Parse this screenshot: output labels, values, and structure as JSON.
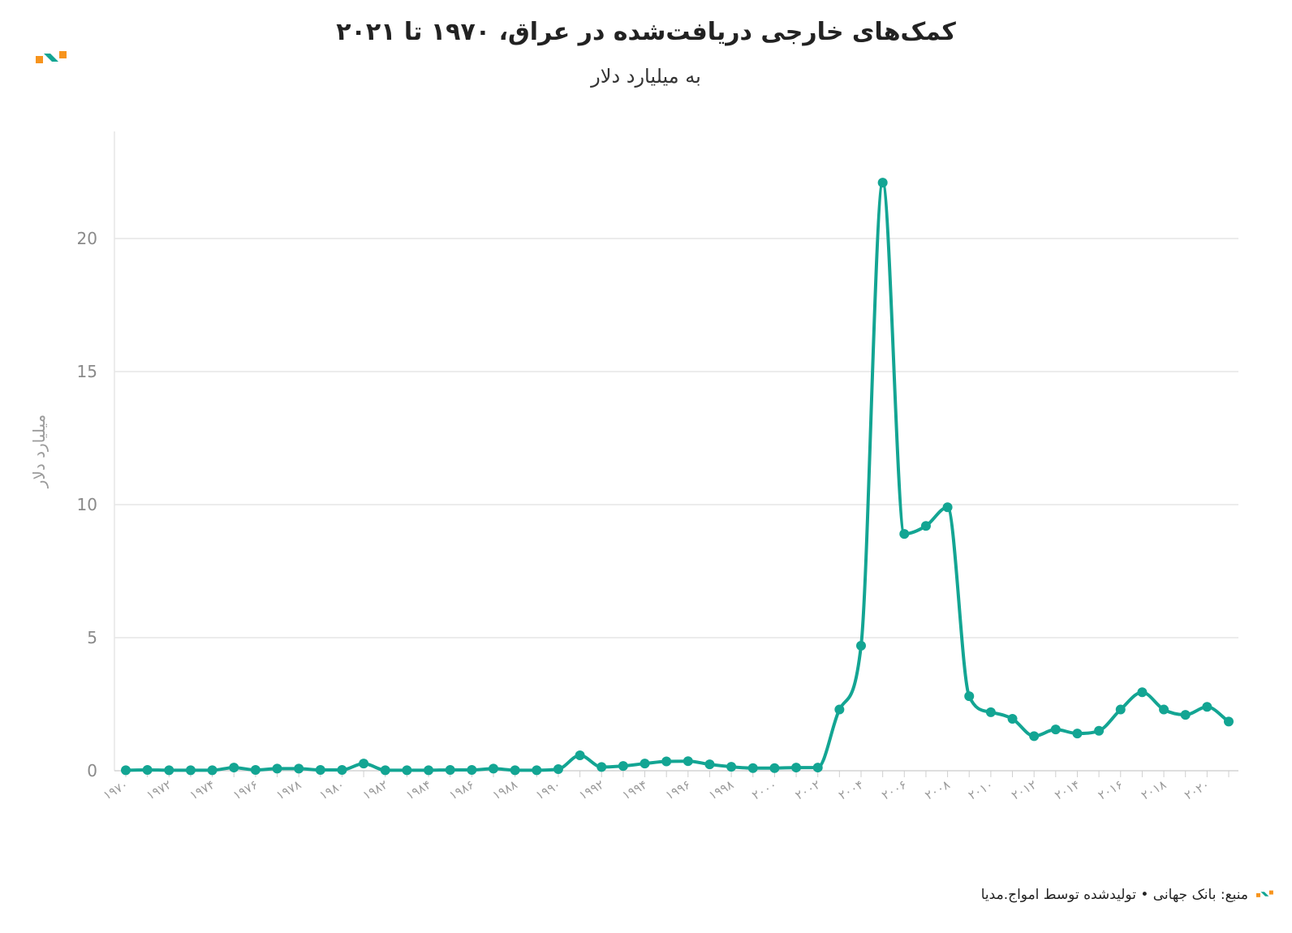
{
  "chart_data": {
    "type": "line",
    "title": "کمک‌های خارجی دریافت‌شده در عراق، ۱۹۷۰ تا ۲۰۲۱",
    "subtitle": "به میلیارد دلار",
    "ylabel": "میلیارد دلار",
    "xlabel": "",
    "ylim": [
      0,
      24
    ],
    "yticks": [
      0,
      5,
      10,
      15,
      20
    ],
    "xticks": [
      "۱۹۷۰",
      "۱۹۷۲",
      "۱۹۷۴",
      "۱۹۷۶",
      "۱۹۷۸",
      "۱۹۸۰",
      "۱۹۸۲",
      "۱۹۸۴",
      "۱۹۸۶",
      "۱۹۸۸",
      "۱۹۹۰",
      "۱۹۹۲",
      "۱۹۹۴",
      "۱۹۹۶",
      "۱۹۹۸",
      "۲۰۰۰",
      "۲۰۰۲",
      "۲۰۰۴",
      "۲۰۰۶",
      "۲۰۰۸",
      "۲۰۱۰",
      "۲۰۱۲",
      "۲۰۱۴",
      "۲۰۱۶",
      "۲۰۱۸",
      "۲۰۲۰"
    ],
    "grid": true,
    "color": "#13a593",
    "x": [
      1970,
      1971,
      1972,
      1973,
      1974,
      1975,
      1976,
      1977,
      1978,
      1979,
      1980,
      1981,
      1982,
      1983,
      1984,
      1985,
      1986,
      1987,
      1988,
      1989,
      1990,
      1991,
      1992,
      1993,
      1994,
      1995,
      1996,
      1997,
      1998,
      1999,
      2000,
      2001,
      2002,
      2003,
      2004,
      2005,
      2006,
      2007,
      2008,
      2009,
      2010,
      2011,
      2012,
      2013,
      2014,
      2015,
      2016,
      2017,
      2018,
      2019,
      2020,
      2021
    ],
    "series": [
      {
        "values": [
          0.02,
          0.03,
          0.02,
          0.02,
          0.02,
          0.12,
          0.03,
          0.08,
          0.08,
          0.03,
          0.03,
          0.27,
          0.02,
          0.02,
          0.02,
          0.03,
          0.03,
          0.08,
          0.02,
          0.02,
          0.06,
          0.58,
          0.14,
          0.18,
          0.27,
          0.35,
          0.36,
          0.24,
          0.15,
          0.1,
          0.1,
          0.12,
          0.12,
          2.3,
          4.7,
          22.1,
          8.9,
          9.2,
          9.9,
          2.8,
          2.2,
          1.95,
          1.3,
          1.55,
          1.4,
          1.5,
          2.3,
          2.95,
          2.3,
          2.1,
          2.4,
          1.85
        ]
      }
    ]
  },
  "footer": {
    "source": "منبع: بانک جهانی • تولیدشده توسط امواج.مدیا"
  }
}
